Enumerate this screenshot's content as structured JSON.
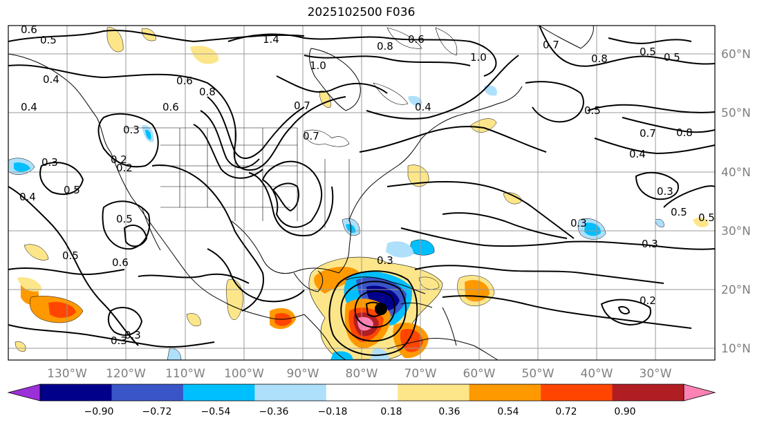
{
  "title": "2025102500 F036",
  "map": {
    "lon_labels": [
      "130°W",
      "120°W",
      "110°W",
      "100°W",
      "90°W",
      "80°W",
      "70°W",
      "60°W",
      "50°W",
      "40°W",
      "30°W"
    ],
    "lat_labels": [
      "60°N",
      "50°N",
      "40°N",
      "30°N",
      "20°N",
      "10°N"
    ],
    "contour_labels": [
      "0.6",
      "0.5",
      "1.4",
      "1.0",
      "0.8",
      "0.6",
      "0.7",
      "0.5",
      "0.4",
      "0.6",
      "0.8",
      "0.7",
      "0.6",
      "0.4",
      "0.8",
      "0.5",
      "0.3",
      "0.7",
      "0.8",
      "0.3",
      "0.2",
      "0.4",
      "0.4",
      "0.5",
      "0.3",
      "0.5",
      "0.5",
      "0.3",
      "0.5",
      "0.3",
      "0.6",
      "0.5",
      "0.3",
      "0.4",
      "0.5",
      "0.3",
      "0.2",
      "0.2",
      "0.3",
      "0.7",
      "1.0"
    ],
    "storm_marker": "tropical-cyclone-center"
  },
  "colorbar": {
    "tick_labels": [
      "−0.90",
      "−0.72",
      "−0.54",
      "−0.36",
      "−0.18",
      "0.18",
      "0.36",
      "0.54",
      "0.72",
      "0.90"
    ],
    "colors": [
      "#9b30d9",
      "#00008b",
      "#3a55c8",
      "#00bfff",
      "#aee0fb",
      "#ffffff",
      "#fde68a",
      "#ff9900",
      "#ff4500",
      "#b01e23",
      "#ff82b4"
    ]
  }
}
